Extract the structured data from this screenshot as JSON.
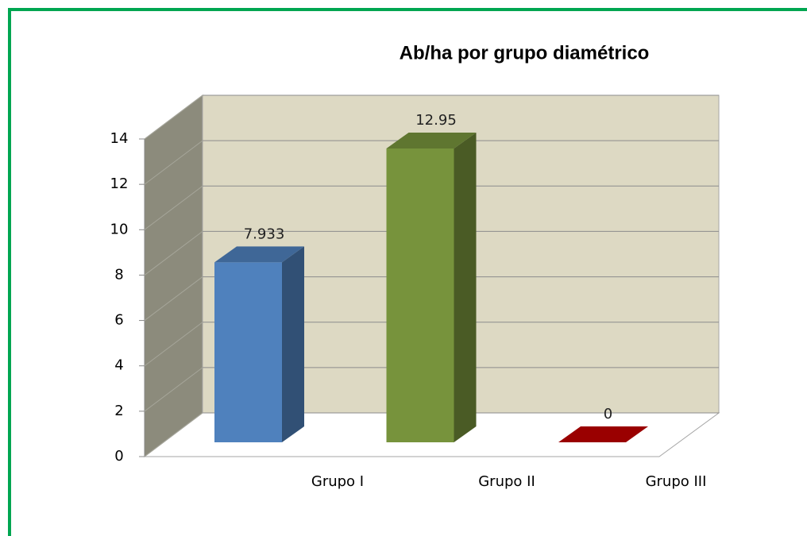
{
  "chart_data": {
    "type": "bar",
    "title": "Ab/ha por grupo diamétrico",
    "categories": [
      "Grupo I",
      "Grupo II",
      "Grupo III"
    ],
    "values": [
      7.933,
      12.95,
      0
    ],
    "colors": [
      "#4f81bd",
      "#77933c",
      "#c00000"
    ],
    "ylim": [
      0,
      14
    ],
    "yticks": [
      0,
      2,
      4,
      6,
      8,
      10,
      12,
      14
    ],
    "grid": true,
    "data_labels": true
  }
}
